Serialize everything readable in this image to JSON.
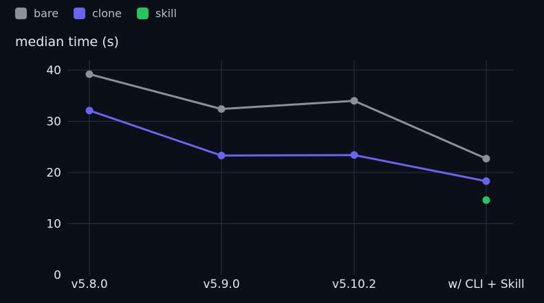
{
  "chart_data": {
    "type": "line",
    "ylabel": "median time (s)",
    "xlabel": "",
    "categories": [
      "v5.8.0",
      "v5.9.0",
      "v5.10.2",
      "w/ CLI + Skill"
    ],
    "ylim": [
      0,
      40
    ],
    "yticks": [
      0,
      10,
      20,
      30,
      40
    ],
    "grid": true,
    "legend_position": "top-left",
    "series": [
      {
        "name": "bare",
        "color": "#8d8f9c",
        "values": [
          39.2,
          32.4,
          34.0,
          22.7
        ]
      },
      {
        "name": "clone",
        "color": "#6a64f2",
        "values": [
          32.1,
          23.3,
          23.4,
          18.3
        ]
      },
      {
        "name": "skill",
        "color": "#22c55e",
        "values": [
          null,
          null,
          null,
          14.6
        ]
      }
    ]
  }
}
